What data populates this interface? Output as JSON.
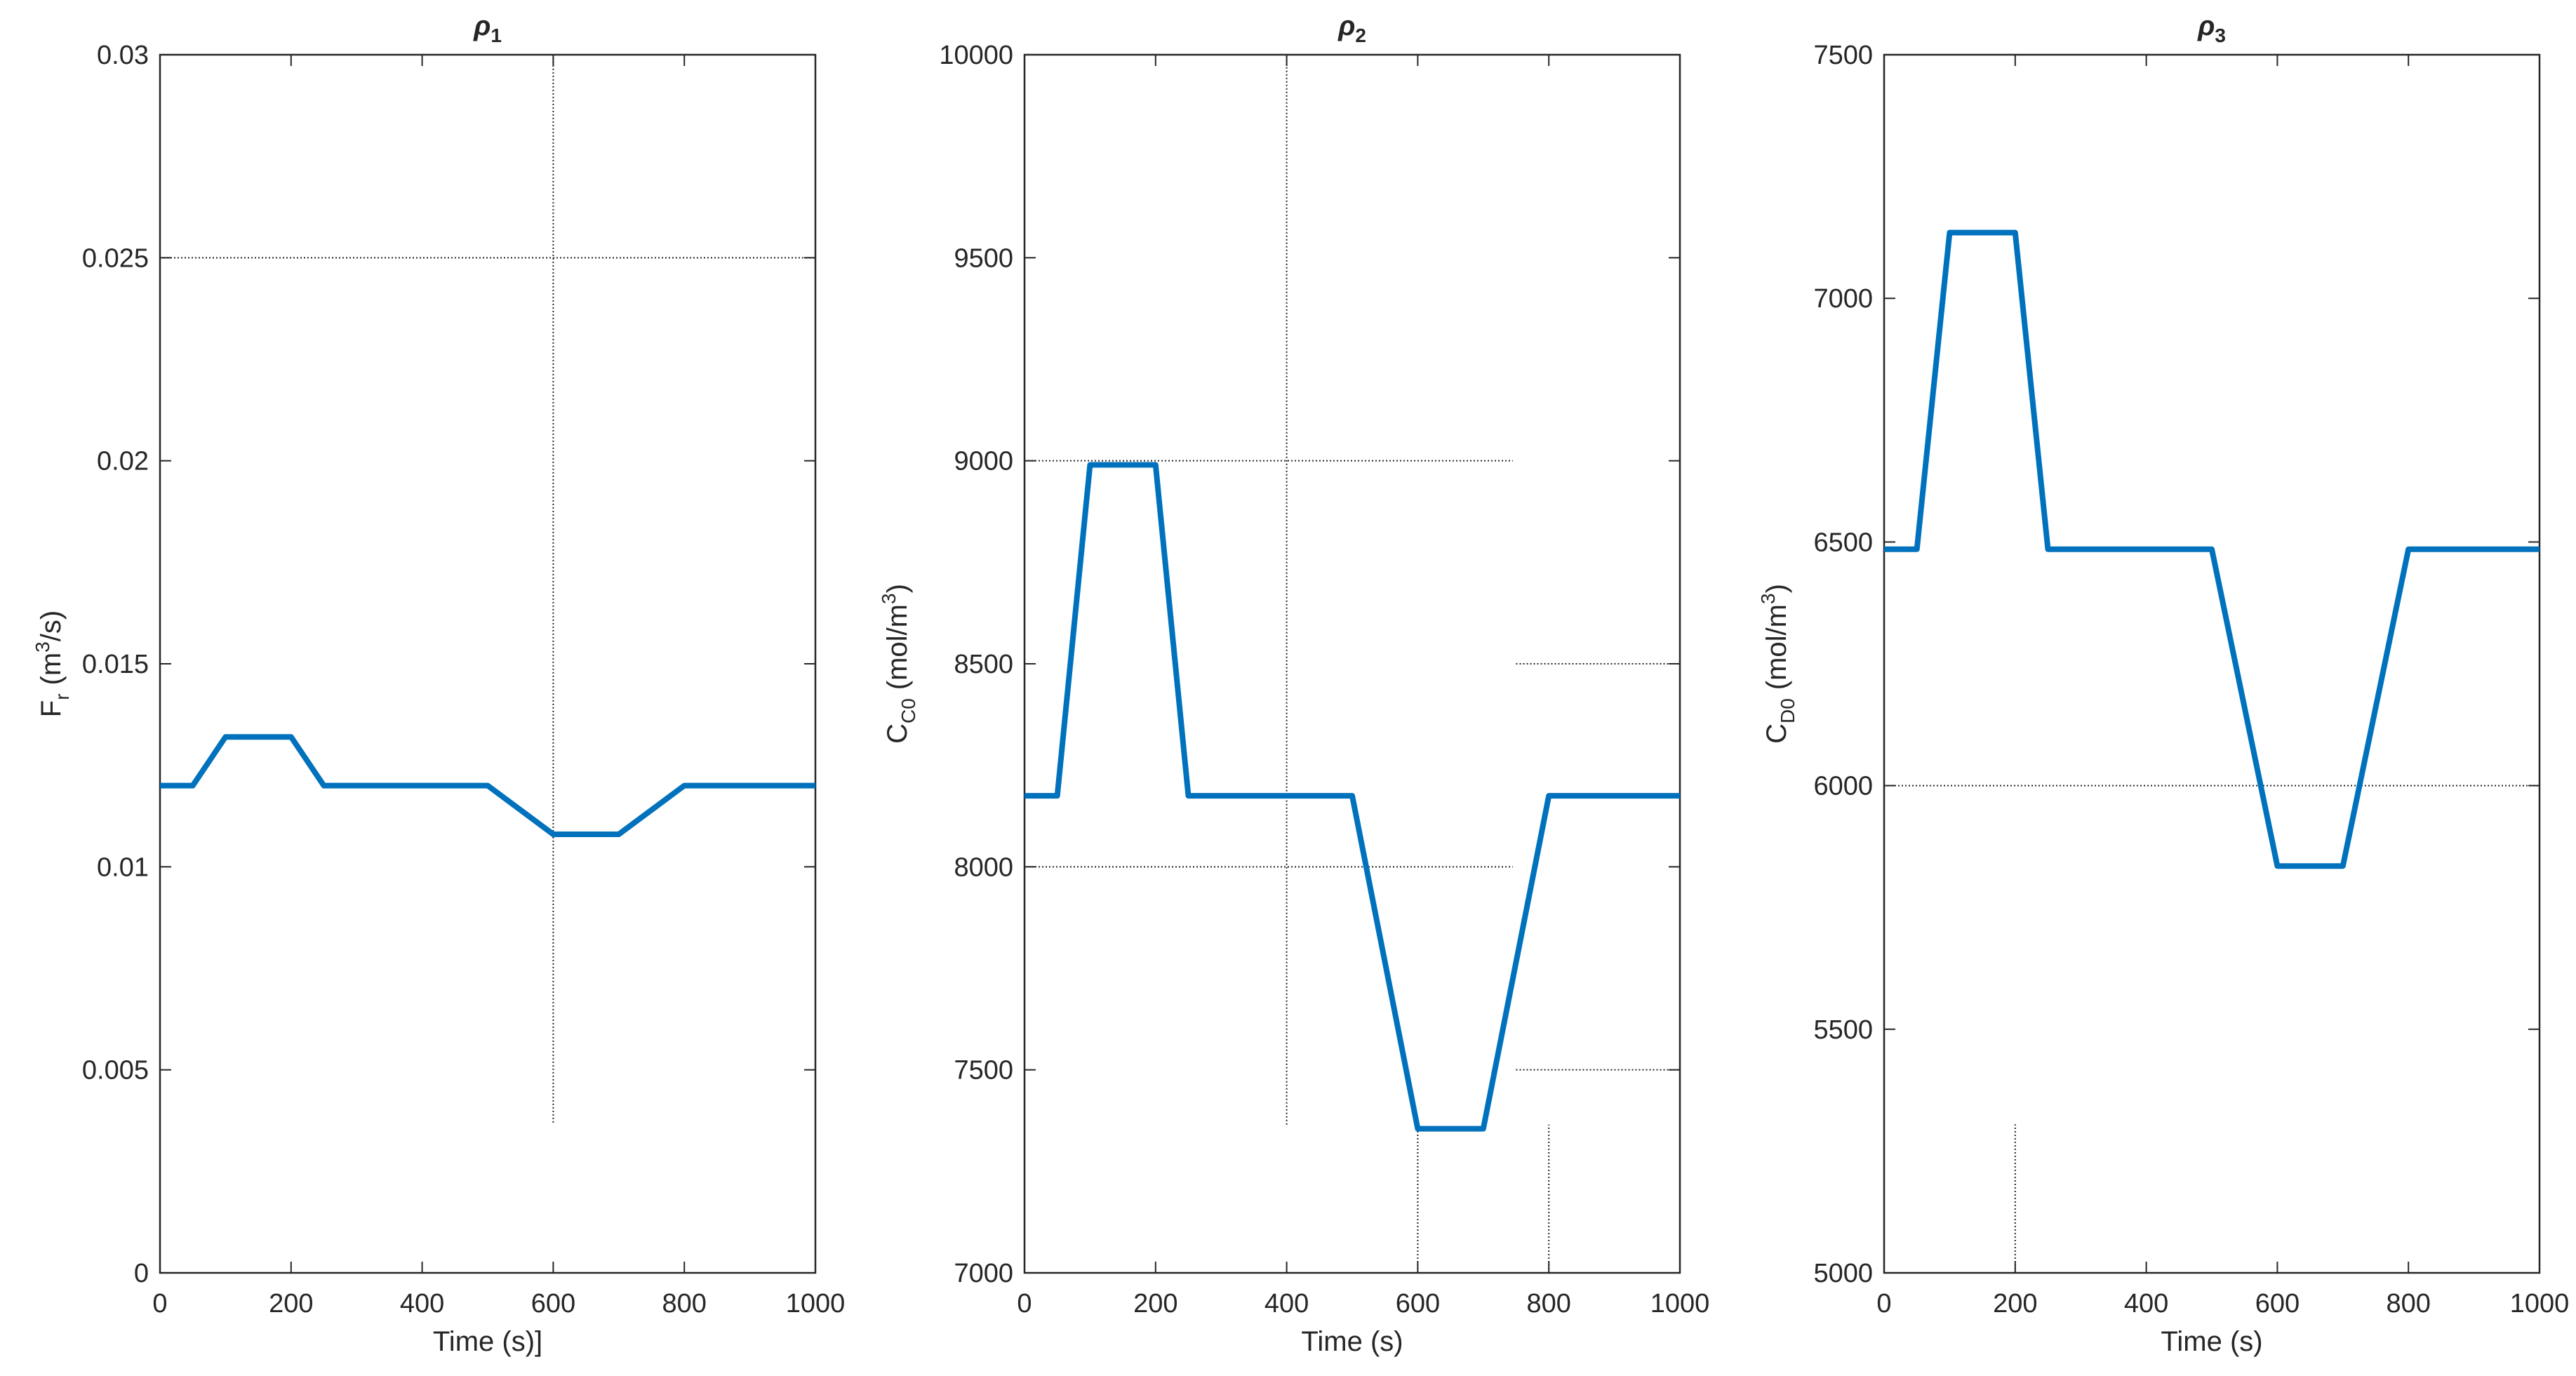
{
  "colors": {
    "series": "#0072BD",
    "axes": "#262626",
    "grid": "#262626",
    "background": "#ffffff"
  },
  "chart_data": [
    {
      "type": "line",
      "title": "ρ1",
      "title_main": "ρ",
      "title_sub": "1",
      "xlabel": "Time (s)]",
      "ylabel": "F_r (m^3/s)",
      "ylabel_parts": {
        "main": "F",
        "sub": "r",
        "pre_unit": "(m",
        "sup": "3",
        "post_unit": "/s)"
      },
      "xlim": [
        0,
        1000
      ],
      "ylim": [
        0,
        0.03
      ],
      "xticks": [
        0,
        200,
        400,
        600,
        800,
        1000
      ],
      "xtick_labels": [
        "0",
        "200",
        "400",
        "600",
        "800",
        "1000"
      ],
      "yticks": [
        0,
        0.005,
        0.01,
        0.015,
        0.02,
        0.025,
        0.03
      ],
      "ytick_labels": [
        "0",
        "0.005",
        "0.01",
        "0.015",
        "0.02",
        "0.025",
        "0.03"
      ],
      "series": [
        {
          "x": [
            0,
            50,
            100,
            200,
            250,
            500,
            600,
            700,
            800,
            1000
          ],
          "y": [
            0.012,
            0.012,
            0.0132,
            0.0132,
            0.012,
            0.012,
            0.0108,
            0.0108,
            0.012,
            0.012
          ]
        }
      ],
      "grid_lines": [
        {
          "orientation": "h",
          "value": 0.025,
          "from": 0,
          "to": 1000
        },
        {
          "orientation": "v",
          "value": 600,
          "from": 0.0037,
          "to": 0.03
        }
      ]
    },
    {
      "type": "line",
      "title": "ρ2",
      "title_main": "ρ",
      "title_sub": "2",
      "xlabel": "Time (s)",
      "ylabel": "C_C0 (mol/m^3)",
      "ylabel_parts": {
        "main": "C",
        "sub": "C0",
        "pre_unit": "(mol/m",
        "sup": "3",
        "post_unit": ")"
      },
      "xlim": [
        0,
        1000
      ],
      "ylim": [
        7000,
        10000
      ],
      "xticks": [
        0,
        200,
        400,
        600,
        800,
        1000
      ],
      "xtick_labels": [
        "0",
        "200",
        "400",
        "600",
        "800",
        "1000"
      ],
      "yticks": [
        7000,
        7500,
        8000,
        8500,
        9000,
        9500,
        10000
      ],
      "ytick_labels": [
        "7000",
        "7500",
        "8000",
        "8500",
        "9000",
        "9500",
        "10000"
      ],
      "series": [
        {
          "x": [
            0,
            50,
            100,
            200,
            250,
            500,
            600,
            700,
            800,
            1000
          ],
          "y": [
            8175,
            8175,
            8990,
            8990,
            8175,
            8175,
            7355,
            7355,
            8175,
            8175
          ]
        }
      ],
      "grid_lines": [
        {
          "orientation": "h",
          "value": 9000,
          "from": 0,
          "to": 745
        },
        {
          "orientation": "h",
          "value": 8000,
          "from": 0,
          "to": 745
        },
        {
          "orientation": "h",
          "value": 8500,
          "from": 750,
          "to": 1000
        },
        {
          "orientation": "h",
          "value": 7500,
          "from": 750,
          "to": 1000
        },
        {
          "orientation": "v",
          "value": 400,
          "from": 7365,
          "to": 10000
        },
        {
          "orientation": "v",
          "value": 600,
          "from": 7000,
          "to": 7370
        },
        {
          "orientation": "v",
          "value": 800,
          "from": 7000,
          "to": 7365
        }
      ]
    },
    {
      "type": "line",
      "title": "ρ3",
      "title_main": "ρ",
      "title_sub": "3",
      "xlabel": "Time (s)",
      "ylabel": "C_D0 (mol/m^3)",
      "ylabel_parts": {
        "main": "C",
        "sub": "D0",
        "pre_unit": "(mol/m",
        "sup": "3",
        "post_unit": ")"
      },
      "xlim": [
        0,
        1000
      ],
      "ylim": [
        5000,
        7500
      ],
      "xticks": [
        0,
        200,
        400,
        600,
        800,
        1000
      ],
      "xtick_labels": [
        "0",
        "200",
        "400",
        "600",
        "800",
        "1000"
      ],
      "yticks": [
        5000,
        5500,
        6000,
        6500,
        7000,
        7500
      ],
      "ytick_labels": [
        "5000",
        "5500",
        "6000",
        "6500",
        "7000",
        "7500"
      ],
      "series": [
        {
          "x": [
            0,
            50,
            100,
            200,
            250,
            500,
            600,
            700,
            800,
            1000
          ],
          "y": [
            6485,
            6485,
            7135,
            7135,
            6485,
            6485,
            5835,
            5835,
            6485,
            6485
          ]
        }
      ],
      "grid_lines": [
        {
          "orientation": "h",
          "value": 6000,
          "from": 0,
          "to": 1000
        },
        {
          "orientation": "v",
          "value": 200,
          "from": 5000,
          "to": 5305
        }
      ]
    }
  ]
}
